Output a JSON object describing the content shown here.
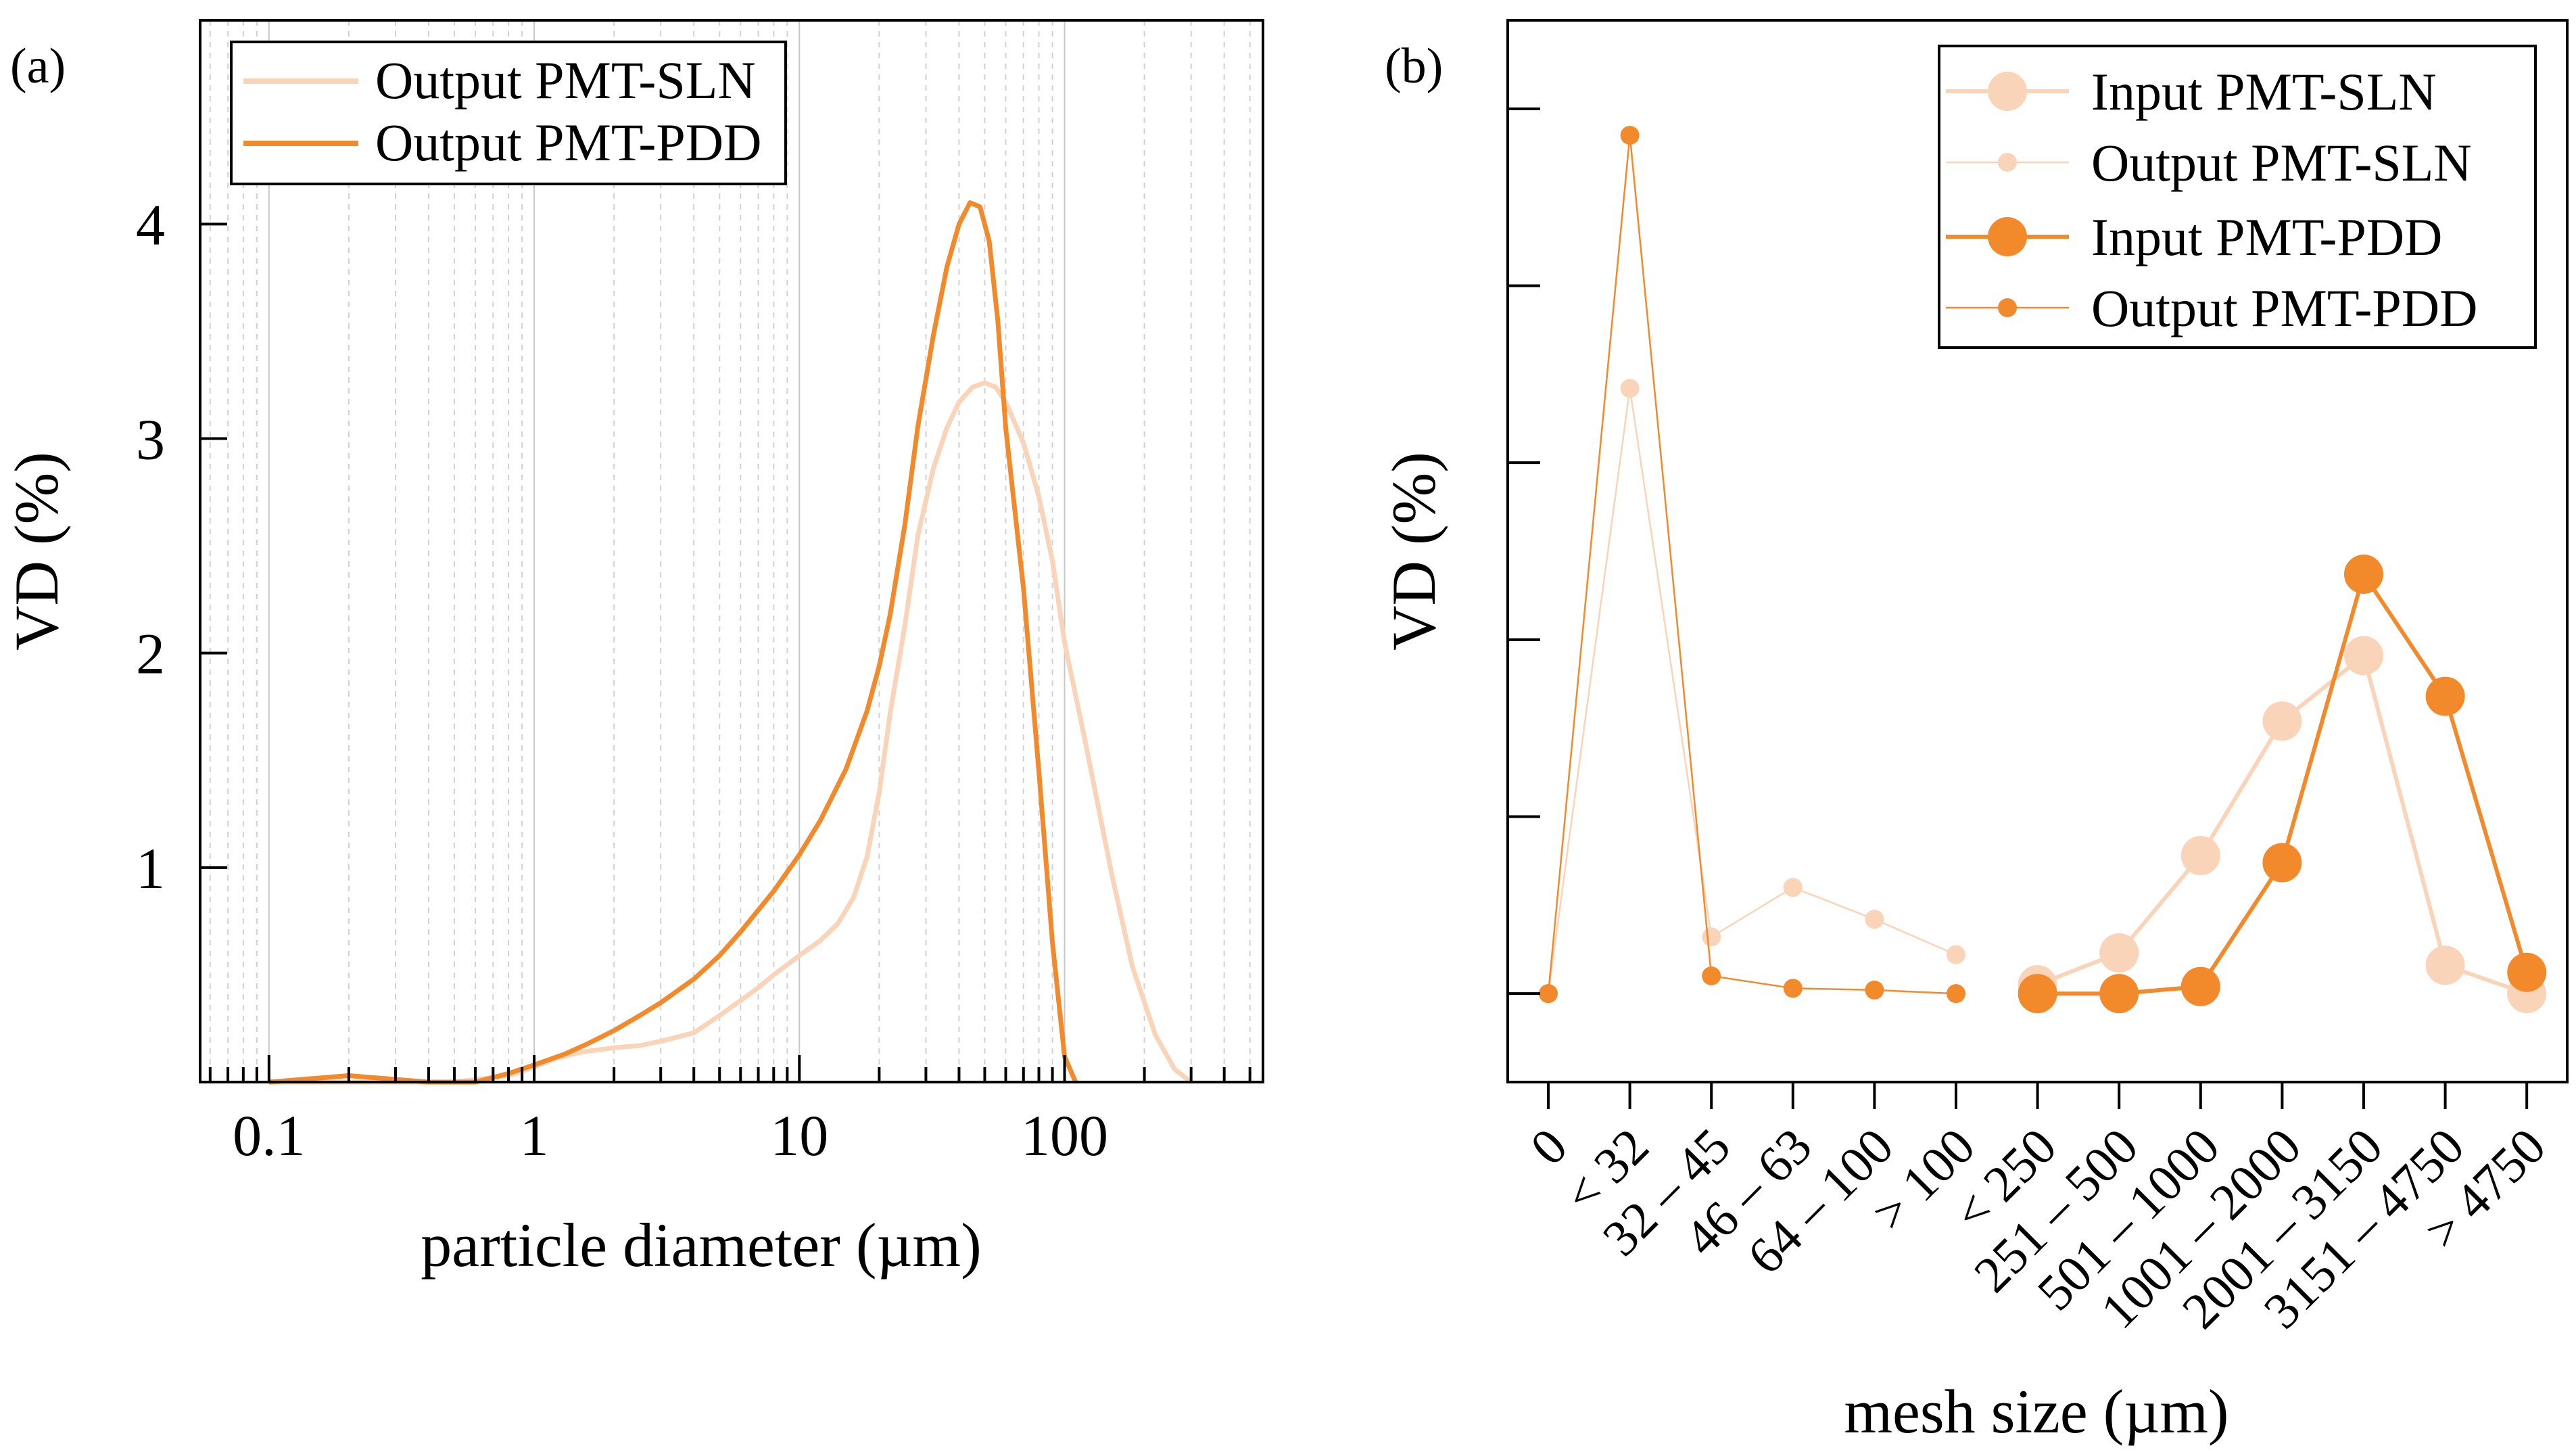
{
  "figure": {
    "panel_a_label": "(a)",
    "panel_b_label": "(b)"
  },
  "colors": {
    "sln": "#f9d4b8",
    "pdd": "#f28a2c"
  },
  "chart_data": [
    {
      "type": "line",
      "panel": "(a)",
      "xlabel": "particle diameter (µm)",
      "ylabel": "VD (%)",
      "xscale": "log",
      "xlim": [
        0.055,
        560
      ],
      "ylim": [
        0,
        4.95
      ],
      "xticks": [
        {
          "value": 0.1,
          "label": "0.1"
        },
        {
          "value": 1,
          "label": "1"
        },
        {
          "value": 10,
          "label": "10"
        },
        {
          "value": 100,
          "label": "100"
        }
      ],
      "yticks": [
        {
          "value": 1,
          "label": "1"
        },
        {
          "value": 2,
          "label": "2"
        },
        {
          "value": 3,
          "label": "3"
        },
        {
          "value": 4,
          "label": "4"
        }
      ],
      "grid": true,
      "legend_position": "top-left",
      "series": [
        {
          "name": "Output PMT-SLN",
          "color": "#f9d4b8",
          "x": [
            0.1,
            0.5,
            0.8,
            1.0,
            1.2,
            1.5,
            2.0,
            2.5,
            3.0,
            4.0,
            5.0,
            6.0,
            7.0,
            8.0,
            10.0,
            12.0,
            14.0,
            16.0,
            18.0,
            20.0,
            22.0,
            25.0,
            28.0,
            32.0,
            36.0,
            40.0,
            45.0,
            50.0,
            55.0,
            60.0,
            70.0,
            80.0,
            90.0,
            100.0,
            120.0,
            150.0,
            180.0,
            220.0,
            260.0,
            300.0
          ],
          "y": [
            0.0,
            0.0,
            0.03,
            0.07,
            0.11,
            0.14,
            0.16,
            0.17,
            0.19,
            0.23,
            0.31,
            0.38,
            0.44,
            0.5,
            0.59,
            0.66,
            0.74,
            0.86,
            1.05,
            1.35,
            1.72,
            2.13,
            2.55,
            2.86,
            3.05,
            3.17,
            3.24,
            3.26,
            3.24,
            3.17,
            2.98,
            2.73,
            2.43,
            2.05,
            1.58,
            0.98,
            0.54,
            0.22,
            0.06,
            0.0
          ]
        },
        {
          "name": "Output PMT-PDD",
          "color": "#f28a2c",
          "x": [
            0.1,
            0.2,
            0.4,
            0.6,
            0.8,
            1.0,
            1.3,
            1.6,
            2.0,
            2.5,
            3.0,
            4.0,
            5.0,
            6.0,
            8.0,
            10.0,
            12.0,
            15.0,
            18.0,
            20.0,
            22.0,
            25.0,
            28.0,
            32.0,
            36.0,
            40.0,
            44.0,
            48.0,
            52.0,
            56.0,
            60.0,
            70.0,
            80.0,
            90.0,
            100.0,
            110.0
          ],
          "y": [
            0.0,
            0.03,
            0.0,
            0.0,
            0.04,
            0.08,
            0.13,
            0.18,
            0.24,
            0.31,
            0.37,
            0.48,
            0.59,
            0.7,
            0.89,
            1.06,
            1.22,
            1.46,
            1.73,
            1.94,
            2.18,
            2.6,
            3.06,
            3.48,
            3.8,
            4.0,
            4.1,
            4.08,
            3.92,
            3.55,
            3.05,
            2.3,
            1.45,
            0.65,
            0.12,
            0.0
          ]
        }
      ]
    },
    {
      "type": "line",
      "panel": "(b)",
      "xlabel": "mesh size (µm)",
      "ylabel": "VD (%)",
      "y_tick_labels_shown": false,
      "ylim": [
        -0.5,
        5.5
      ],
      "yticks": [
        0,
        1,
        2,
        3,
        4,
        5
      ],
      "legend_position": "top-right",
      "categories": [
        "0",
        "< 32",
        "32 – 45",
        "46 – 63",
        "64 – 100",
        "> 100",
        "< 250",
        "251 – 500",
        "501 – 1000",
        "1001 – 2000",
        "2001 – 3150",
        "3151 – 4750",
        "> 4750"
      ],
      "series": [
        {
          "name": "Input PMT-SLN",
          "color": "#f9d4b8",
          "marker": "large",
          "values": [
            null,
            null,
            null,
            null,
            null,
            null,
            0.05,
            0.23,
            0.78,
            1.54,
            1.91,
            0.16,
            0.0
          ]
        },
        {
          "name": "Output PMT-SLN",
          "color": "#f9d4b8",
          "marker": "small",
          "values": [
            0.0,
            3.42,
            0.32,
            0.6,
            0.42,
            0.22,
            null,
            null,
            null,
            null,
            null,
            null,
            null
          ]
        },
        {
          "name": "Input PMT-PDD",
          "color": "#f28a2c",
          "marker": "large",
          "values": [
            null,
            null,
            null,
            null,
            null,
            null,
            0.0,
            0.0,
            0.04,
            0.74,
            2.37,
            1.68,
            0.12
          ]
        },
        {
          "name": "Output PMT-PDD",
          "color": "#f28a2c",
          "marker": "small",
          "values": [
            0.0,
            4.85,
            0.1,
            0.03,
            0.02,
            0.0,
            null,
            null,
            null,
            null,
            null,
            null,
            null
          ]
        }
      ]
    }
  ]
}
